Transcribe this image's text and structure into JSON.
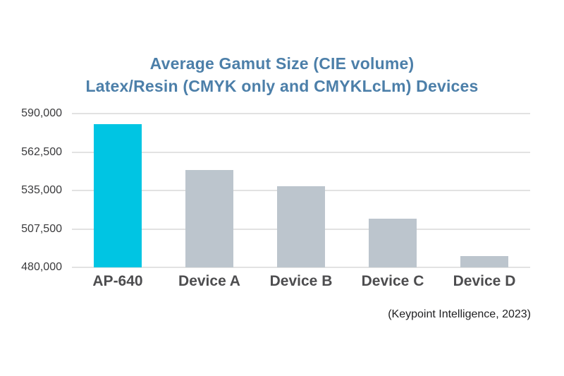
{
  "chart_data": {
    "type": "bar",
    "title": "Average Gamut Size (CIE volume) Latex/Resin (CMYK only and CMYKLcLm) Devices",
    "title_line1": "Average Gamut Size (CIE volume)",
    "title_line2": "Latex/Resin (CMYK only and CMYKLcLm) Devices",
    "categories": [
      "AP-640",
      "Device A",
      "Device B",
      "Device C",
      "Device D"
    ],
    "values": [
      582500,
      549500,
      538000,
      515000,
      488000
    ],
    "highlight_index": 0,
    "ylim": [
      480000,
      590000
    ],
    "ytick_step": 27500,
    "yticks_top_to_bottom": [
      "590,000",
      "562,500",
      "535,000",
      "507,500",
      "480,000"
    ],
    "grid": true,
    "legend": "none",
    "source": "(Keypoint Intelligence, 2023)",
    "colors": {
      "highlight_bar": "#00C5E3",
      "default_bar": "#BCC5CD",
      "title_text": "#4C7FA9",
      "gridline": "#E2E2E2",
      "ytick_text": "#3A3A3C",
      "xtick_text": "#4D4D4F",
      "source_text": "#1F1F21",
      "background": "#FFFFFF"
    }
  }
}
